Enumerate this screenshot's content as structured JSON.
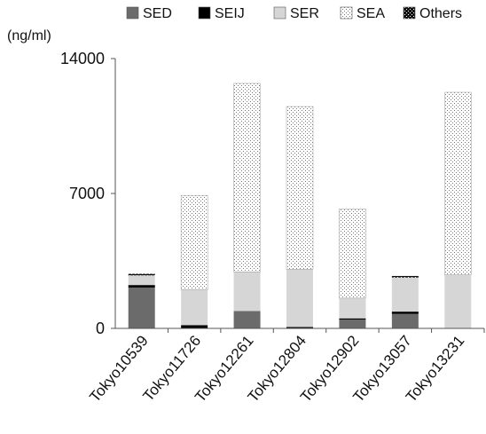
{
  "chart_data": {
    "type": "bar",
    "stacked": true,
    "unit_label": "(ng/ml)",
    "categories": [
      "Tokyo10539",
      "Tokyo11726",
      "Tokyo12261",
      "Tokyo12804",
      "Tokyo12902",
      "Tokyo13057",
      "Tokyo13231"
    ],
    "series": [
      {
        "name": "SED",
        "fill": "#6b6b6b",
        "pattern": "solid",
        "values": [
          2120,
          0,
          900,
          0,
          460,
          750,
          0
        ]
      },
      {
        "name": "SEIJ",
        "fill": "#000000",
        "pattern": "solid",
        "values": [
          130,
          170,
          0,
          70,
          60,
          120,
          0
        ]
      },
      {
        "name": "SER",
        "fill": "#d6d6d6",
        "pattern": "solid",
        "values": [
          500,
          1850,
          2030,
          3000,
          1050,
          1770,
          2780
        ]
      },
      {
        "name": "SEA",
        "fill": "#ffffff",
        "pattern": "dots",
        "values": [
          0,
          4880,
          9780,
          8440,
          4630,
          0,
          9470
        ]
      },
      {
        "name": "Others",
        "fill": "#1a1a1a",
        "pattern": "dense",
        "values": [
          80,
          0,
          0,
          0,
          0,
          80,
          0
        ]
      }
    ],
    "yticks": [
      0,
      7000,
      14000
    ],
    "ylim": [
      0,
      14000
    ],
    "grid": false,
    "legend_position": "top"
  }
}
